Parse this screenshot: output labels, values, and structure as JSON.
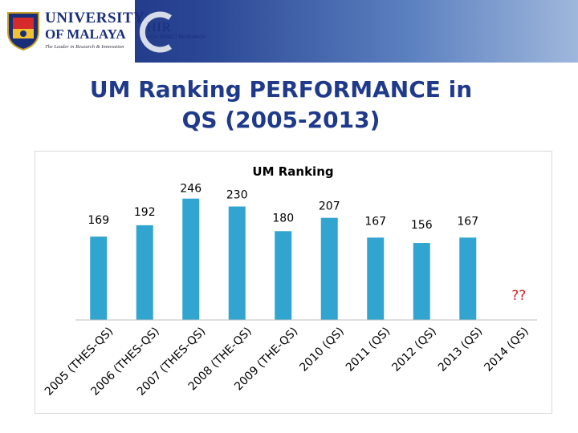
{
  "header": {
    "university_line1": "UNIVERSITY",
    "university_line2": "OF MALAYA",
    "university_tagline": "The Leader in Research & Innovation",
    "hir_logo_text": "HIR",
    "hir_subtitle": "HIGH IMPACT RESEARCH"
  },
  "slide": {
    "title_line1": "UM Ranking PERFORMANCE in",
    "title_line2": "QS (2005-2013)"
  },
  "colors": {
    "bar": "#31a5cf",
    "title": "#1f3a8a",
    "question_marks": "#d61f1f",
    "banner_dark": "#16297a"
  },
  "chart_data": {
    "type": "bar",
    "title": "UM Ranking",
    "categories": [
      "2005 (THES-QS)",
      "2006 (THES-QS)",
      "2007 (THES-QS)",
      "2008 (THE-QS)",
      "2009 (THE-QS)",
      "2010 (QS)",
      "2011 (QS)",
      "2012 (QS)",
      "2013 (QS)",
      "2014 (QS)"
    ],
    "values": [
      169,
      192,
      246,
      230,
      180,
      207,
      167,
      156,
      167,
      null
    ],
    "data_labels": [
      "169",
      "192",
      "246",
      "230",
      "180",
      "207",
      "167",
      "156",
      "167",
      "??"
    ],
    "ylim": [
      0,
      300
    ],
    "grid": false,
    "legend": "none",
    "xlabel": "",
    "ylabel": ""
  }
}
